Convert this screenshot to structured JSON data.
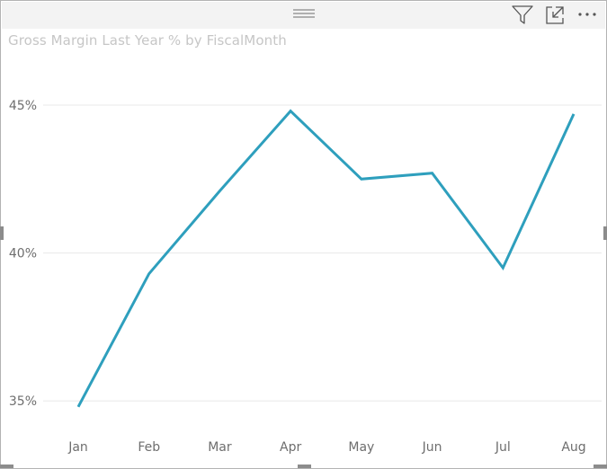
{
  "visual": {
    "header_icons": [
      "drag-grip-icon",
      "filter-icon",
      "focus-mode-icon",
      "more-options-icon"
    ]
  },
  "chart_data": {
    "type": "line",
    "title": "Gross Margin Last Year % by FiscalMonth",
    "xlabel": "",
    "ylabel": "",
    "categories": [
      "Jan",
      "Feb",
      "Mar",
      "Apr",
      "May",
      "Jun",
      "Jul",
      "Aug"
    ],
    "series": [
      {
        "values": [
          34.8,
          39.3,
          42.1,
          44.8,
          42.5,
          42.7,
          39.5,
          44.7
        ],
        "color": "#2e9fbd"
      }
    ],
    "yticks": [
      35,
      40,
      45
    ],
    "ytick_labels": [
      "35%",
      "40%",
      "45%"
    ],
    "ylim": [
      34.4,
      46.7
    ],
    "grid": true,
    "legend": "none"
  }
}
